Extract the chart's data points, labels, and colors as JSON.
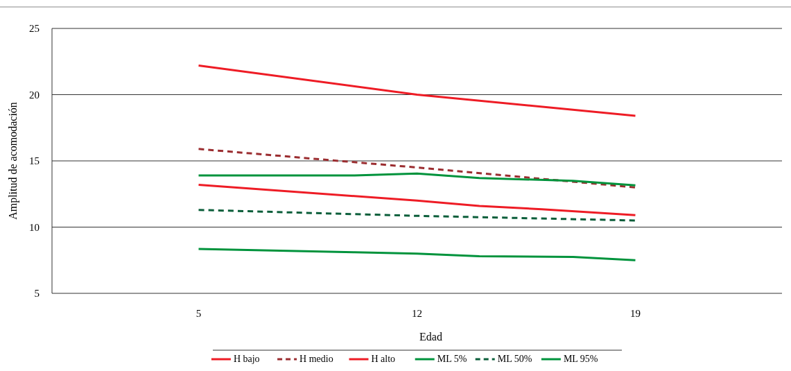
{
  "chart_data": {
    "type": "line",
    "xlabel": "Edad",
    "ylabel": "Amplitud de acomodación",
    "xlim": [
      0.3,
      23.7
    ],
    "xticks": [
      5,
      12,
      19
    ],
    "ylim": [
      5,
      25
    ],
    "yticks": [
      5,
      10,
      15,
      20,
      25
    ],
    "grid": "y",
    "legend": "bottom",
    "marker": "none",
    "series": [
      {
        "name": "H bajo",
        "color": "#ee1c25",
        "line_style": "solid",
        "x": [
          5,
          12,
          19
        ],
        "values": [
          22.2,
          20.0,
          18.4
        ]
      },
      {
        "name": "H medio",
        "color": "#9b2d30",
        "line_style": "dashed",
        "x": [
          5,
          12,
          19
        ],
        "values": [
          15.9,
          14.5,
          13.0
        ]
      },
      {
        "name": "H alto",
        "color": "#ee1c25",
        "line_style": "solid",
        "x": [
          5,
          12,
          14,
          16,
          19
        ],
        "values": [
          13.2,
          12.0,
          11.6,
          11.35,
          10.9
        ]
      },
      {
        "name": "ML 5%",
        "color": "#00933c",
        "line_style": "solid",
        "x": [
          5,
          10,
          12,
          14,
          17,
          19
        ],
        "values": [
          8.35,
          8.1,
          8.0,
          7.8,
          7.75,
          7.5
        ]
      },
      {
        "name": "ML 50%",
        "color": "#0b5e3a",
        "line_style": "dashed",
        "x": [
          5,
          12,
          19
        ],
        "values": [
          11.3,
          10.85,
          10.5
        ]
      },
      {
        "name": "ML 95%",
        "color": "#00933c",
        "line_style": "solid",
        "x": [
          5,
          10,
          12,
          14,
          17,
          19
        ],
        "values": [
          13.9,
          13.9,
          14.05,
          13.7,
          13.5,
          13.15
        ]
      }
    ]
  }
}
